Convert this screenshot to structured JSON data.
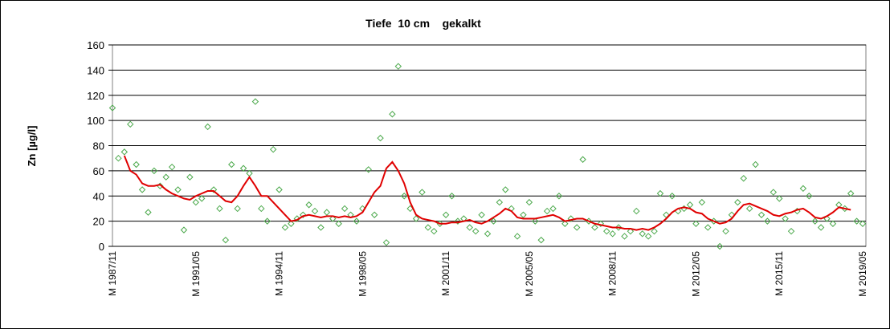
{
  "chart_data": {
    "type": "combo",
    "title": "Tiefe  10 cm    gekalkt",
    "y_label": "Zn [µg/l]",
    "ylim": [
      0,
      160
    ],
    "yticks": [
      0,
      20,
      40,
      60,
      80,
      100,
      120,
      140,
      160
    ],
    "grid": true,
    "categories": [
      "M 1987/11",
      null,
      null,
      null,
      null,
      null,
      null,
      null,
      null,
      null,
      null,
      null,
      null,
      null,
      "M 1991/05",
      null,
      null,
      null,
      null,
      null,
      null,
      null,
      null,
      null,
      null,
      null,
      null,
      null,
      "M 1994/11",
      null,
      null,
      null,
      null,
      null,
      null,
      null,
      null,
      null,
      null,
      null,
      null,
      null,
      "M 1998/05",
      null,
      null,
      null,
      null,
      null,
      null,
      null,
      null,
      null,
      null,
      null,
      null,
      null,
      "M 2001/11",
      null,
      null,
      null,
      null,
      null,
      null,
      null,
      null,
      null,
      null,
      null,
      null,
      null,
      "M 2005/05",
      null,
      null,
      null,
      null,
      null,
      null,
      null,
      null,
      null,
      null,
      null,
      null,
      null,
      "M 2008/11",
      null,
      null,
      null,
      null,
      null,
      null,
      null,
      null,
      null,
      null,
      null,
      null,
      null,
      "M 2012/05",
      null,
      null,
      null,
      null,
      null,
      null,
      null,
      null,
      null,
      null,
      null,
      null,
      null,
      "M 2015/11",
      null,
      null,
      null,
      null,
      null,
      null,
      null,
      null,
      null,
      null,
      null,
      null,
      null,
      "M 2019/05"
    ],
    "series": [
      {
        "type": "scatter",
        "color": "#4aa84a",
        "values": [
          110,
          70,
          75,
          97,
          65,
          45,
          27,
          60,
          48,
          55,
          63,
          45,
          13,
          55,
          35,
          38,
          95,
          45,
          30,
          5,
          65,
          30,
          62,
          58,
          115,
          30,
          20,
          77,
          45,
          15,
          18,
          22,
          25,
          33,
          28,
          15,
          27,
          22,
          18,
          30,
          25,
          20,
          30,
          61,
          25,
          86,
          3,
          105,
          143,
          40,
          30,
          22,
          43,
          15,
          12,
          18,
          25,
          40,
          20,
          22,
          15,
          12,
          25,
          10,
          20,
          35,
          45,
          30,
          8,
          25,
          35,
          20,
          5,
          28,
          30,
          40,
          18,
          22,
          15,
          69,
          20,
          15,
          18,
          12,
          10,
          15,
          8,
          12,
          28,
          10,
          8,
          12,
          42,
          25,
          40,
          28,
          30,
          33,
          18,
          35,
          15,
          20,
          0,
          12,
          25,
          35,
          54,
          30,
          65,
          25,
          20,
          43,
          38,
          22,
          12,
          28,
          46,
          40,
          20,
          15,
          22,
          18,
          33,
          30,
          42,
          20,
          18
        ]
      },
      {
        "type": "line",
        "color": "#e00000",
        "values": [
          null,
          null,
          72,
          60,
          57,
          50,
          48,
          48,
          49,
          45,
          42,
          40,
          38,
          37,
          40,
          42,
          44,
          44,
          40,
          36,
          35,
          40,
          48,
          55,
          48,
          40,
          40,
          35,
          30,
          25,
          20,
          21,
          24,
          25,
          24,
          23,
          24,
          24,
          23,
          24,
          23,
          24,
          27,
          35,
          43,
          48,
          62,
          67,
          60,
          50,
          35,
          25,
          22,
          21,
          20,
          18,
          18,
          19,
          19,
          20,
          21,
          19,
          18,
          20,
          23,
          26,
          30,
          28,
          23,
          22,
          22,
          22,
          23,
          24,
          25,
          23,
          20,
          21,
          22,
          22,
          20,
          18,
          17,
          16,
          15,
          15,
          14,
          14,
          13,
          14,
          13,
          15,
          18,
          22,
          27,
          30,
          31,
          30,
          27,
          26,
          22,
          20,
          18,
          19,
          22,
          28,
          33,
          34,
          32,
          30,
          28,
          25,
          24,
          26,
          27,
          29,
          30,
          27,
          23,
          22,
          24,
          27,
          31,
          30,
          29,
          null,
          null
        ]
      }
    ]
  }
}
